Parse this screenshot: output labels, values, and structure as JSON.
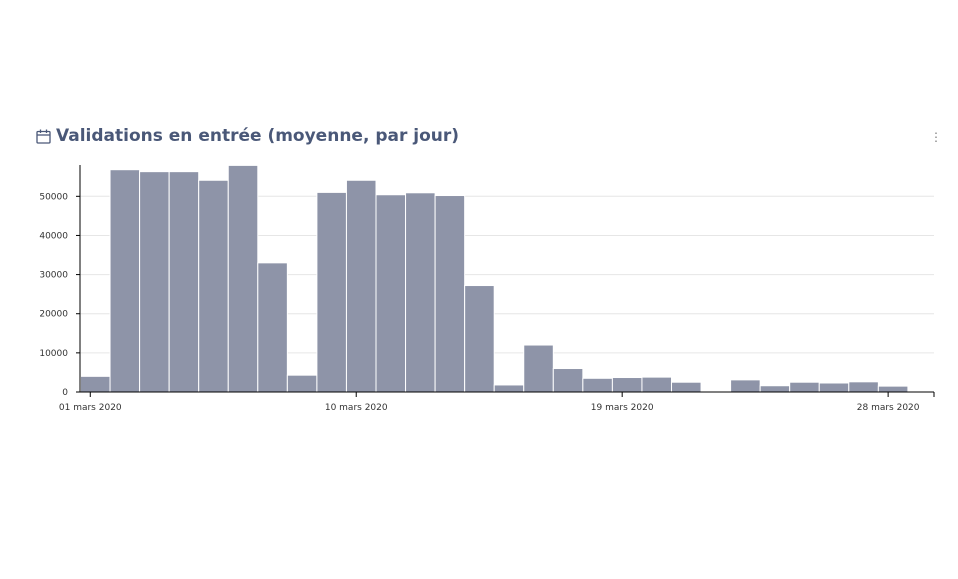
{
  "card": {
    "title": "Validations en entrée (moyenne, par jour)",
    "title_icon": "calendar-icon",
    "menu_icon": "more-vertical-icon"
  },
  "colors": {
    "bar": "#8e94a8",
    "bar_stroke": "#ffffff",
    "grid": "#e6e6e6",
    "axis": "#000000",
    "title": "#4a5878"
  },
  "chart_data": {
    "type": "bar",
    "title": "Validations en entrée (moyenne, par jour)",
    "xlabel": "",
    "ylabel": "",
    "ylim": [
      0,
      58000
    ],
    "grid": true,
    "x_tick_labels": [
      "01 mars 2020",
      "10 mars 2020",
      "19 mars 2020",
      "28 mars 2020"
    ],
    "y_tick_labels": [
      "0",
      "10000",
      "20000",
      "30000",
      "40000",
      "50000"
    ],
    "y_ticks": [
      0,
      10000,
      20000,
      30000,
      40000,
      50000
    ],
    "categories": [
      "2020-03-01",
      "2020-03-02",
      "2020-03-03",
      "2020-03-04",
      "2020-03-05",
      "2020-03-06",
      "2020-03-07",
      "2020-03-08",
      "2020-03-09",
      "2020-03-10",
      "2020-03-11",
      "2020-03-12",
      "2020-03-13",
      "2020-03-14",
      "2020-03-15",
      "2020-03-16",
      "2020-03-17",
      "2020-03-18",
      "2020-03-19",
      "2020-03-20",
      "2020-03-21",
      "2020-03-22",
      "2020-03-23",
      "2020-03-24",
      "2020-03-25",
      "2020-03-26",
      "2020-03-27",
      "2020-03-28"
    ],
    "values": [
      4000,
      56800,
      56300,
      56300,
      54100,
      57900,
      33000,
      4300,
      51000,
      54100,
      50400,
      50900,
      50200,
      27200,
      1800,
      12000,
      6000,
      3500,
      3700,
      3800,
      2500,
      0,
      3100,
      1600,
      2500,
      2300,
      2600,
      1500
    ]
  }
}
